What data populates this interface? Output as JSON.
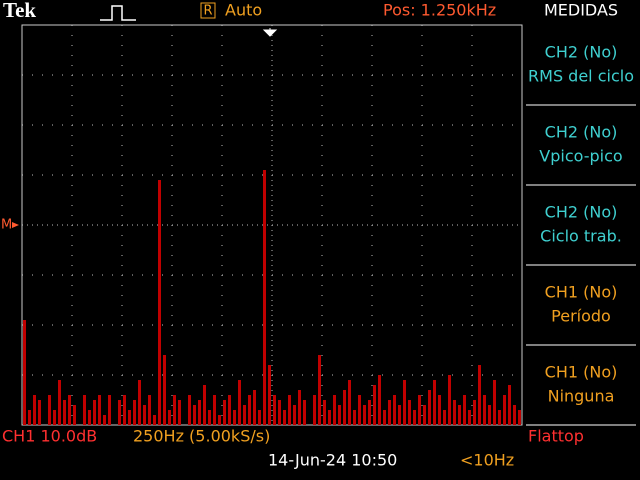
{
  "top": {
    "brand": "Tek",
    "mode_icon": "R",
    "trigger_mode": "Auto",
    "position": "Pos: 1.250kHz",
    "menu_title": "MEDIDAS"
  },
  "marker": "M",
  "measurements": [
    {
      "source": "CH2 (No)",
      "label": "RMS del ciclo",
      "color": "#3fd0d0"
    },
    {
      "source": "CH2 (No)",
      "label": "Vpico-pico",
      "color": "#3fd0d0"
    },
    {
      "source": "CH2 (No)",
      "label": "Ciclo trab.",
      "color": "#3fd0d0"
    },
    {
      "source": "CH1 (No)",
      "label": "Período",
      "color": "#f0a020"
    },
    {
      "source": "CH1 (No)",
      "label": "Ninguna",
      "color": "#f0a020"
    }
  ],
  "bottom": {
    "channel": "CH1 10.0dB",
    "span": "250Hz (5.00kS/s)",
    "window": "Flattop",
    "datetime": "14-Jun-24 10:50",
    "trigger_freq": "<10Hz"
  },
  "trace": {
    "color": "#c00000",
    "values": [
      2.1,
      0.3,
      0.6,
      0.5,
      0,
      0.6,
      0.3,
      0.9,
      0.5,
      0.6,
      0.4,
      0,
      0.6,
      0.3,
      0.5,
      0.6,
      0.2,
      0.6,
      0,
      0.5,
      0.6,
      0.3,
      0.5,
      0.9,
      0.4,
      0.6,
      0.2,
      4.9,
      1.4,
      0.3,
      0.6,
      0.5,
      0,
      0.6,
      0.4,
      0.5,
      0.8,
      0.3,
      0.6,
      0.2,
      0.5,
      0.6,
      0.3,
      0.9,
      0.4,
      0.6,
      0.7,
      0.3,
      5.1,
      1.2,
      0.6,
      0.5,
      0.3,
      0.6,
      0.4,
      0.7,
      0.5,
      0,
      0.6,
      1.4,
      0.5,
      0.3,
      0.6,
      0.4,
      0.7,
      0.9,
      0.3,
      0.6,
      0.4,
      0.5,
      0.8,
      1.0,
      0.3,
      0.5,
      0.6,
      0.4,
      0.9,
      0.5,
      0.3,
      0.6,
      0.4,
      0.7,
      0.9,
      0.6,
      0.3,
      1.0,
      0.5,
      0.4,
      0.6,
      0.3,
      0.5,
      1.2,
      0.6,
      0.4,
      0.9,
      0.3,
      0.6,
      0.8,
      0.4,
      0.3
    ]
  }
}
